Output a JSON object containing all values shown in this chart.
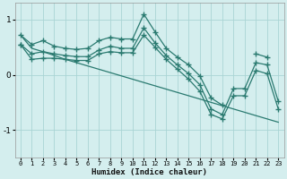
{
  "xlabel": "Humidex (Indice chaleur)",
  "bg_color": "#d4eeee",
  "grid_color": "#aad4d4",
  "line_color": "#2a7a70",
  "xlim": [
    -0.5,
    23.5
  ],
  "ylim": [
    -1.5,
    1.3
  ],
  "yticks": [
    -1,
    0,
    1
  ],
  "xticks": [
    0,
    1,
    2,
    3,
    4,
    5,
    6,
    7,
    8,
    9,
    10,
    11,
    12,
    13,
    14,
    15,
    16,
    17,
    18,
    19,
    20,
    21,
    22,
    23
  ],
  "series_marked": [
    [
      0.72,
      0.55,
      0.62,
      0.52,
      0.48,
      0.46,
      0.48,
      0.62,
      0.68,
      0.65,
      0.65,
      1.1,
      0.78,
      0.48,
      0.32,
      0.18,
      -0.02,
      -0.42,
      -0.55,
      null,
      null,
      0.38,
      0.32,
      null
    ],
    [
      0.55,
      0.38,
      0.42,
      0.38,
      0.35,
      0.33,
      0.33,
      0.45,
      0.52,
      0.48,
      0.48,
      0.85,
      0.58,
      0.35,
      0.18,
      0.02,
      -0.18,
      -0.62,
      -0.72,
      -0.25,
      -0.25,
      0.22,
      0.18,
      -0.48
    ],
    [
      0.55,
      0.28,
      0.3,
      0.3,
      0.28,
      0.26,
      0.26,
      0.38,
      0.42,
      0.4,
      0.4,
      0.72,
      0.5,
      0.28,
      0.1,
      -0.08,
      -0.3,
      -0.72,
      -0.8,
      -0.38,
      -0.38,
      0.08,
      0.02,
      -0.62
    ]
  ],
  "series_line": [
    0.72,
    0.48,
    0.42,
    0.35,
    0.28,
    0.22,
    0.16,
    0.1,
    0.04,
    -0.02,
    -0.08,
    -0.14,
    -0.2,
    -0.26,
    -0.32,
    -0.38,
    -0.44,
    -0.5,
    -0.56,
    -0.62,
    -0.68,
    -0.74,
    -0.8,
    -0.86
  ]
}
